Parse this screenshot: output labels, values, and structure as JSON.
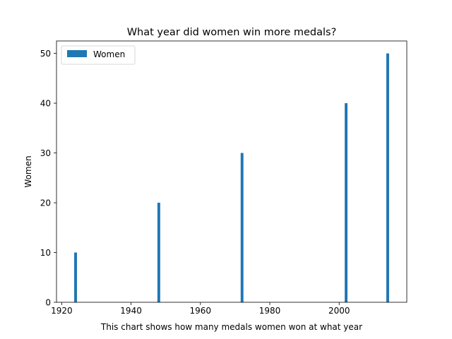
{
  "chart_data": {
    "type": "bar",
    "title": "What year did women win more medals?",
    "xlabel": "This chart shows how many medals women won at what year",
    "ylabel": "Women",
    "x": [
      1924,
      1948,
      1972,
      2002,
      2014
    ],
    "series": [
      {
        "name": "Women",
        "values": [
          10,
          20,
          30,
          40,
          50
        ],
        "color": "#1f77b4"
      }
    ],
    "xlim": [
      1918.5,
      2019.5
    ],
    "ylim": [
      0,
      52.5
    ],
    "xticks": [
      1920,
      1940,
      1960,
      1980,
      2000
    ],
    "yticks": [
      0,
      10,
      20,
      30,
      40,
      50
    ],
    "bar_width_years": 0.8,
    "grid": false,
    "legend": "upper-left"
  }
}
